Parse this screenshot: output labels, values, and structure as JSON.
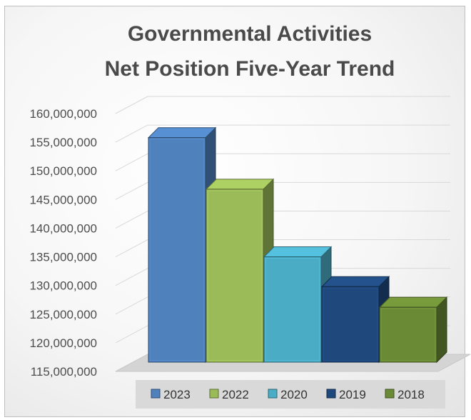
{
  "chart_data": {
    "type": "bar",
    "title_lines": [
      "Governmental Activities",
      "Net Position Five-Year Trend"
    ],
    "categories": [
      "2023",
      "2022",
      "2020",
      "2019",
      "2018"
    ],
    "values": [
      155800000,
      146800000,
      135000000,
      129800000,
      126200000
    ],
    "colors": [
      "#4f81bd",
      "#9bbb59",
      "#4bacc6",
      "#1f497d",
      "#6b8a36"
    ],
    "ylim": [
      115000000,
      160000000
    ],
    "yticks": [
      "115,000,000",
      "120,000,000",
      "125,000,000",
      "130,000,000",
      "135,000,000",
      "140,000,000",
      "145,000,000",
      "150,000,000",
      "155,000,000",
      "160,000,000"
    ],
    "legend": [
      "2023",
      "2022",
      "2020",
      "2019",
      "2018"
    ],
    "legend_position": "bottom",
    "grid": true
  }
}
